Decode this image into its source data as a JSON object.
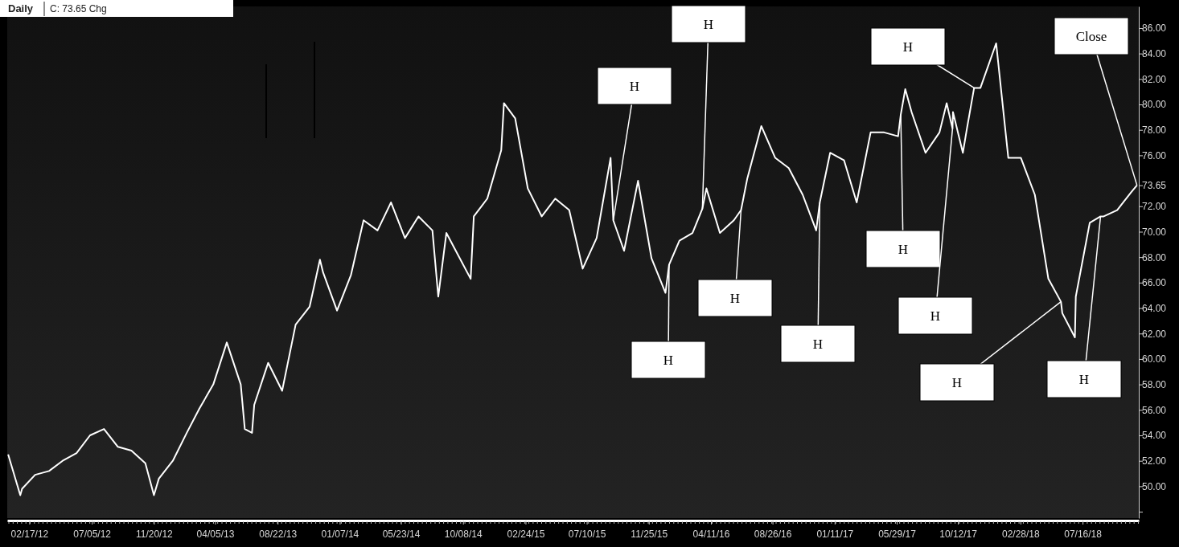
{
  "chart_data": {
    "type": "line",
    "title": "Daily",
    "subtitle": "C: 73.65  Chg",
    "xlim": [
      "2011-12-30",
      "2018-11-18"
    ],
    "xticks": [
      {
        "value": "2012-02-17",
        "label": "02/17/12"
      },
      {
        "value": "2012-07-05",
        "label": "07/05/12"
      },
      {
        "value": "2012-11-20",
        "label": "11/20/12"
      },
      {
        "value": "2013-04-05",
        "label": "04/05/13"
      },
      {
        "value": "2013-08-22",
        "label": "08/22/13"
      },
      {
        "value": "2014-01-07",
        "label": "01/07/14"
      },
      {
        "value": "2014-05-23",
        "label": "05/23/14"
      },
      {
        "value": "2014-10-08",
        "label": "10/08/14"
      },
      {
        "value": "2015-02-24",
        "label": "02/24/15"
      },
      {
        "value": "2015-07-10",
        "label": "07/10/15"
      },
      {
        "value": "2015-11-25",
        "label": "11/25/15"
      },
      {
        "value": "2016-04-11",
        "label": "04/11/16"
      },
      {
        "value": "2016-08-26",
        "label": "08/26/16"
      },
      {
        "value": "2017-01-11",
        "label": "01/11/17"
      },
      {
        "value": "2017-05-29",
        "label": "05/29/17"
      },
      {
        "value": "2017-10-12",
        "label": "10/12/17"
      },
      {
        "value": "2018-02-28",
        "label": "02/28/18"
      },
      {
        "value": "2018-07-16",
        "label": "07/16/18"
      }
    ],
    "ylim": [
      47.5,
      87.7
    ],
    "yticks": [
      {
        "value": 48,
        "label": null
      },
      {
        "value": 50,
        "label": "50.00"
      },
      {
        "value": 52,
        "label": "52.00"
      },
      {
        "value": 54,
        "label": "54.00"
      },
      {
        "value": 56,
        "label": "56.00"
      },
      {
        "value": 58,
        "label": "58.00"
      },
      {
        "value": 60,
        "label": "60.00"
      },
      {
        "value": 62,
        "label": "62.00"
      },
      {
        "value": 64,
        "label": "64.00"
      },
      {
        "value": 66,
        "label": "66.00"
      },
      {
        "value": 68,
        "label": "68.00"
      },
      {
        "value": 70,
        "label": "70.00"
      },
      {
        "value": 72,
        "label": "72.00"
      },
      {
        "value": 73.65,
        "label": "73.65"
      },
      {
        "value": 76,
        "label": "76.00"
      },
      {
        "value": 78,
        "label": "78.00"
      },
      {
        "value": 80,
        "label": "80.00"
      },
      {
        "value": 82,
        "label": "82.00"
      },
      {
        "value": 84,
        "label": "84.00"
      },
      {
        "value": 86,
        "label": "86.00"
      }
    ],
    "grid": false,
    "marker": "none",
    "line_style": "solid",
    "series": [
      {
        "color": "#ffffff",
        "x": [
          "2012-01-01",
          "2012-01-28",
          "2012-02-01",
          "2012-03-01",
          "2012-04-01",
          "2012-05-01",
          "2012-06-01",
          "2012-07-01",
          "2012-08-01",
          "2012-09-01",
          "2012-10-01",
          "2012-11-01",
          "2012-11-20",
          "2012-12-01",
          "2013-01-01",
          "2013-02-01",
          "2013-03-01",
          "2013-04-01",
          "2013-05-01",
          "2013-06-01",
          "2013-06-10",
          "2013-06-26",
          "2013-07-01",
          "2013-08-01",
          "2013-09-01",
          "2013-10-01",
          "2013-11-01",
          "2013-11-24",
          "2013-12-01",
          "2014-01-01",
          "2014-02-01",
          "2014-03-01",
          "2014-04-01",
          "2014-05-01",
          "2014-06-01",
          "2014-07-01",
          "2014-08-01",
          "2014-08-14",
          "2014-09-01",
          "2014-10-01",
          "2014-10-25",
          "2014-11-01",
          "2014-12-01",
          "2015-01-01",
          "2015-01-07",
          "2015-02-01",
          "2015-03-01",
          "2015-04-01",
          "2015-05-01",
          "2015-06-01",
          "2015-07-01",
          "2015-08-01",
          "2015-09-01",
          "2015-09-07",
          "2015-10-01",
          "2015-11-01",
          "2015-12-01",
          "2016-01-01",
          "2016-01-09",
          "2016-02-01",
          "2016-03-01",
          "2016-03-23",
          "2016-04-01",
          "2016-05-01",
          "2016-06-01",
          "2016-06-17",
          "2016-07-01",
          "2016-08-01",
          "2016-09-01",
          "2016-10-01",
          "2016-11-01",
          "2016-12-01",
          "2016-12-09",
          "2017-01-01",
          "2017-02-01",
          "2017-03-01",
          "2017-04-01",
          "2017-05-01",
          "2017-06-01",
          "2017-06-07",
          "2017-06-17",
          "2017-07-01",
          "2017-08-01",
          "2017-09-01",
          "2017-09-17",
          "2017-09-30",
          "2017-10-01",
          "2017-10-23",
          "2017-11-01",
          "2017-11-17",
          "2017-12-01",
          "2018-01-01",
          "2018-01-05",
          "2018-02-01",
          "2018-03-01",
          "2018-04-01",
          "2018-05-01",
          "2018-05-29",
          "2018-06-01",
          "2018-06-29",
          "2018-07-01",
          "2018-08-01",
          "2018-08-25",
          "2018-09-01",
          "2018-10-01",
          "2018-11-01",
          "2018-11-14"
        ],
        "values": [
          52.5,
          49.3,
          49.8,
          50.9,
          51.2,
          52.0,
          52.6,
          54.0,
          54.5,
          53.1,
          52.8,
          51.8,
          49.3,
          50.6,
          52.0,
          54.2,
          56.1,
          58.0,
          61.3,
          58.0,
          54.5,
          54.2,
          56.4,
          59.7,
          57.5,
          62.7,
          64.1,
          67.8,
          66.8,
          63.8,
          66.6,
          70.9,
          70.1,
          72.3,
          69.5,
          71.2,
          70.1,
          64.9,
          69.9,
          67.9,
          66.3,
          71.2,
          72.6,
          76.4,
          80.1,
          78.9,
          73.4,
          71.2,
          72.6,
          71.7,
          67.1,
          69.5,
          75.8,
          70.9,
          68.5,
          74.0,
          67.9,
          65.2,
          67.4,
          69.3,
          69.9,
          71.8,
          73.4,
          69.9,
          70.9,
          71.7,
          74.2,
          78.3,
          75.8,
          75.0,
          72.9,
          70.1,
          72.3,
          76.2,
          75.6,
          72.3,
          77.8,
          77.8,
          77.5,
          79.2,
          81.2,
          79.4,
          76.2,
          77.8,
          80.1,
          78.1,
          79.4,
          76.2,
          78.1,
          81.3,
          81.3,
          84.4,
          84.8,
          75.8,
          75.8,
          72.9,
          66.3,
          64.5,
          63.6,
          61.7,
          64.9,
          70.7,
          71.2,
          71.2,
          71.7,
          73.1,
          73.65
        ]
      }
    ],
    "annotations": [
      {
        "text": "H",
        "x": "2015-09-07",
        "y": 70.9
      },
      {
        "text": "H",
        "x": "2016-03-23",
        "y": 71.8
      },
      {
        "text": "H",
        "x": "2016-01-09",
        "y": 67.4
      },
      {
        "text": "H",
        "x": "2016-06-17",
        "y": 71.7
      },
      {
        "text": "H",
        "x": "2016-12-09",
        "y": 72.3
      },
      {
        "text": "H",
        "x": "2017-06-07",
        "y": 79.2
      },
      {
        "text": "H",
        "x": "2017-09-30",
        "y": 78.1
      },
      {
        "text": "H",
        "x": "2017-11-17",
        "y": 81.3
      },
      {
        "text": "H",
        "x": "2018-05-29",
        "y": 64.5
      },
      {
        "text": "H",
        "x": "2018-08-25",
        "y": 71.2
      },
      {
        "text": "Close",
        "x": "2018-11-14",
        "y": 73.65
      }
    ]
  }
}
